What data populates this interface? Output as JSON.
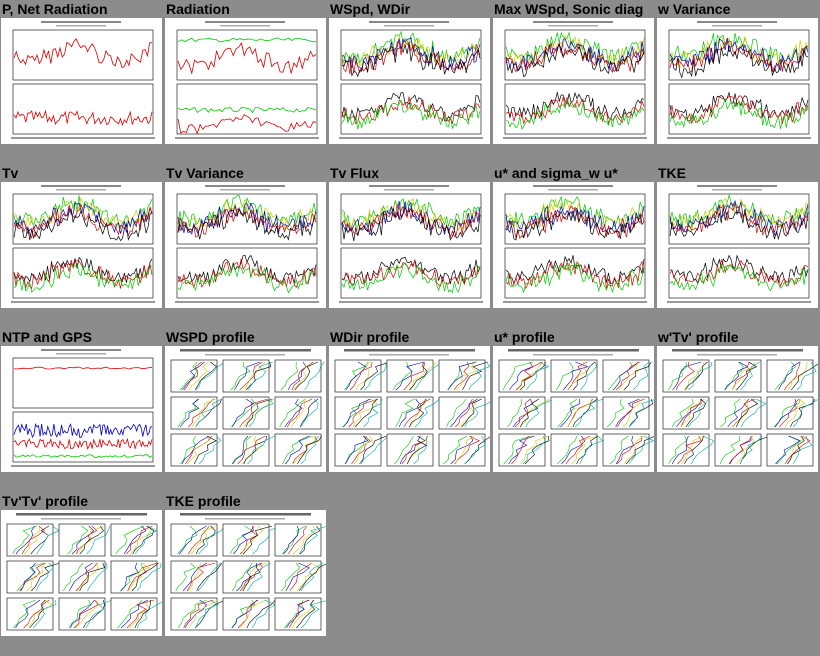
{
  "colors": {
    "page_background": "#8c8c8c",
    "thumb_background": "#ffffff",
    "traces": [
      "#00cc00",
      "#0000cc",
      "#dd0000",
      "#cccc00",
      "#000000",
      "#00aaaa",
      "#aa00aa"
    ]
  },
  "thumbnails": [
    {
      "title": "P, Net Radiation",
      "kind": "timeseries-red",
      "icon": "pressure-radiation-plot"
    },
    {
      "title": "Radiation",
      "kind": "timeseries-rad",
      "icon": "radiation-plot"
    },
    {
      "title": "WSpd, WDir",
      "kind": "timeseries-multi",
      "icon": "wind-plot"
    },
    {
      "title": "Max WSpd, Sonic diag",
      "kind": "timeseries-multi",
      "icon": "max-wind-plot"
    },
    {
      "title": "w Variance",
      "kind": "timeseries-multi",
      "icon": "w-variance-plot"
    },
    {
      "title": "Tv",
      "kind": "timeseries-multi",
      "icon": "tv-plot"
    },
    {
      "title": "Tv Variance",
      "kind": "timeseries-multi",
      "icon": "tv-variance-plot"
    },
    {
      "title": "Tv Flux",
      "kind": "timeseries-multi",
      "icon": "tv-flux-plot"
    },
    {
      "title": "u* and sigma_w u*",
      "kind": "timeseries-multi",
      "icon": "ustar-plot"
    },
    {
      "title": "TKE",
      "kind": "timeseries-multi",
      "icon": "tke-plot"
    },
    {
      "title": "NTP and GPS",
      "kind": "timeseries-ntp",
      "icon": "ntp-gps-plot"
    },
    {
      "title": "WSPD profile",
      "kind": "profile",
      "icon": "wspd-profile-plot"
    },
    {
      "title": "WDir profile",
      "kind": "profile",
      "icon": "wdir-profile-plot"
    },
    {
      "title": "u* profile",
      "kind": "profile",
      "icon": "ustar-profile-plot"
    },
    {
      "title": "w'Tv' profile",
      "kind": "profile",
      "icon": "wtv-profile-plot"
    },
    {
      "title": "Tv'Tv' profile",
      "kind": "profile",
      "icon": "tvtv-profile-plot"
    },
    {
      "title": "TKE profile",
      "kind": "profile",
      "icon": "tke-profile-plot"
    }
  ]
}
